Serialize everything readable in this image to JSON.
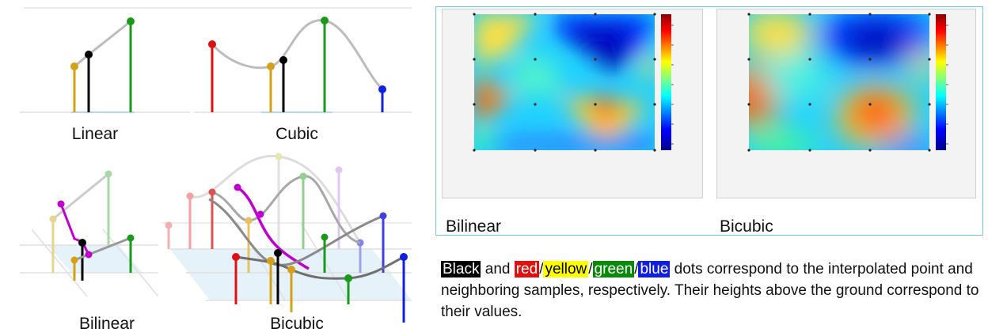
{
  "labels": {
    "linear": "Linear",
    "cubic": "Cubic",
    "bilinear_left": "Bilinear",
    "bicubic_left": "Bicubic",
    "bilinear_map": "Bilinear",
    "bicubic_map": "Bicubic"
  },
  "caption": {
    "black": "Black",
    "and": " and ",
    "red": "red",
    "slash": "/",
    "yellow": "yellow",
    "green": "green",
    "blue": "blue",
    "rest": " dots correspond to the interpolated point and neighboring samples, respectively. Their heights above the ground correspond to their values."
  },
  "colors": {
    "black": "#000000",
    "red": "#e01010",
    "yellow": "#ffff00",
    "green": "#0a8a0a",
    "blue": "#1020e0",
    "gold": "#d4a017",
    "curve": "#bdbdbd",
    "magenta": "#c000d0"
  }
}
